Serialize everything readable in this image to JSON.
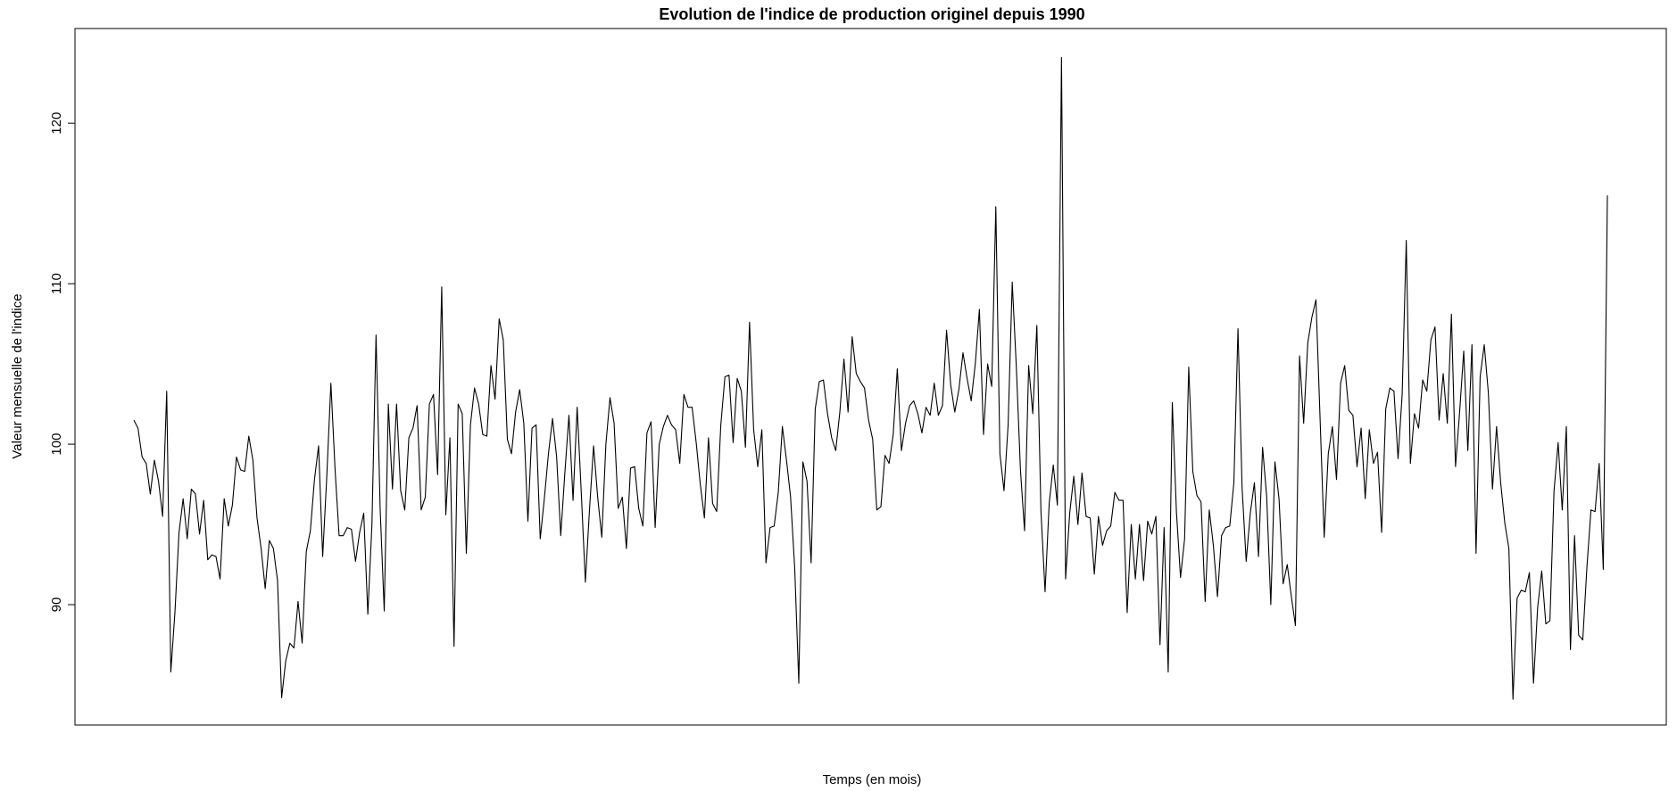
{
  "chart_data": {
    "type": "line",
    "title": "Evolution de l'indice de production originel depuis 1990",
    "xlabel": "Temps (en mois)",
    "ylabel": "Valeur mensuelle de l'indice",
    "x_ticks_shown": false,
    "ylim": [
      82.5,
      125.9
    ],
    "y_ticks": [
      90,
      100,
      110,
      120
    ],
    "grid": false,
    "legend": "none",
    "line_color": "#000000",
    "series": [
      {
        "values": [
          101.5,
          101.0,
          99.2,
          98.8,
          96.9,
          99.0,
          97.7,
          95.5,
          103.3,
          85.8,
          89.5,
          94.5,
          96.6,
          94.1,
          97.2,
          96.9,
          94.4,
          96.5,
          92.8,
          93.1,
          93.0,
          91.6,
          96.6,
          94.9,
          96.2,
          99.2,
          98.4,
          98.3,
          100.5,
          99.0,
          95.4,
          93.5,
          91.0,
          94.0,
          93.5,
          91.5,
          84.2,
          86.5,
          87.6,
          87.3,
          90.2,
          87.6,
          93.3,
          94.6,
          97.8,
          99.9,
          93.0,
          98.0,
          103.8,
          98.5,
          94.3,
          94.3,
          94.8,
          94.7,
          92.7,
          94.5,
          95.7,
          89.4,
          95.0,
          106.8,
          96.0,
          89.6,
          102.5,
          97.2,
          102.5,
          97.1,
          95.9,
          100.4,
          101.0,
          102.4,
          95.9,
          96.7,
          102.5,
          103.1,
          98.1,
          109.8,
          95.6,
          100.4,
          87.4,
          102.5,
          101.9,
          93.2,
          101.2,
          103.5,
          102.5,
          100.6,
          100.5,
          104.9,
          102.8,
          107.8,
          106.5,
          100.3,
          99.4,
          102.0,
          103.4,
          101.3,
          95.2,
          101.0,
          101.2,
          94.1,
          96.6,
          99.4,
          101.6,
          99.2,
          94.3,
          98.2,
          101.8,
          96.5,
          102.3,
          97.0,
          91.4,
          95.9,
          99.9,
          96.7,
          94.2,
          100.0,
          102.9,
          101.3,
          96.0,
          96.7,
          93.5,
          98.5,
          98.6,
          96.0,
          94.9,
          100.7,
          101.4,
          94.8,
          100.0,
          101.1,
          101.8,
          101.2,
          100.9,
          98.8,
          103.1,
          102.3,
          102.3,
          100.1,
          97.5,
          95.4,
          100.4,
          96.3,
          95.8,
          101.2,
          104.2,
          104.3,
          100.1,
          104.1,
          103.3,
          99.8,
          107.6,
          100.9,
          98.6,
          100.9,
          92.6,
          94.8,
          94.9,
          97.0,
          101.1,
          99.0,
          96.7,
          92.3,
          85.1,
          98.9,
          97.7,
          92.6,
          102.2,
          103.9,
          104.0,
          101.9,
          100.4,
          99.6,
          102.0,
          105.3,
          102.0,
          106.7,
          104.4,
          103.9,
          103.5,
          101.5,
          100.3,
          95.9,
          96.1,
          99.3,
          98.8,
          100.6,
          104.7,
          99.6,
          101.3,
          102.4,
          102.7,
          101.9,
          100.7,
          102.3,
          101.8,
          103.8,
          101.8,
          102.4,
          107.1,
          103.7,
          102.0,
          103.4,
          105.7,
          104.1,
          102.7,
          105.0,
          108.4,
          100.6,
          105.0,
          103.6,
          114.8,
          99.4,
          97.1,
          101.2,
          110.1,
          104.8,
          98.4,
          94.6,
          104.9,
          101.9,
          107.4,
          95.8,
          90.8,
          96.3,
          98.7,
          96.2,
          124.1,
          91.6,
          95.7,
          98.0,
          95.0,
          98.2,
          95.5,
          95.4,
          91.9,
          95.5,
          93.7,
          94.6,
          94.9,
          97.0,
          96.5,
          96.5,
          89.5,
          95.0,
          91.6,
          95.0,
          91.5,
          95.2,
          94.4,
          95.5,
          87.5,
          94.8,
          85.8,
          102.6,
          95.8,
          91.7,
          94.1,
          104.8,
          98.3,
          96.8,
          96.4,
          90.2,
          95.9,
          93.7,
          90.5,
          94.3,
          94.8,
          94.9,
          97.6,
          107.2,
          97.3,
          92.7,
          95.7,
          97.6,
          93.0,
          99.8,
          96.7,
          90.0,
          98.9,
          96.6,
          91.3,
          92.5,
          90.5,
          88.7,
          105.5,
          101.3,
          106.3,
          107.9,
          109.0,
          101.6,
          94.2,
          99.4,
          101.1,
          97.8,
          103.8,
          104.9,
          102.1,
          101.8,
          98.6,
          101.0,
          96.6,
          100.9,
          98.8,
          99.5,
          94.5,
          102.2,
          103.5,
          103.3,
          99.1,
          103.1,
          112.7,
          98.8,
          101.9,
          101.0,
          104.0,
          103.3,
          106.5,
          107.3,
          101.5,
          104.4,
          101.3,
          108.1,
          98.6,
          102.0,
          105.8,
          99.6,
          106.2,
          93.2,
          104.2,
          106.2,
          103.2,
          97.2,
          101.1,
          97.6,
          95.1,
          93.5,
          84.1,
          90.4,
          90.9,
          90.8,
          92.0,
          85.1,
          89.8,
          92.1,
          88.8,
          89.0,
          97.1,
          100.1,
          95.9,
          101.1,
          87.2,
          94.3,
          88.1,
          87.8,
          92.3,
          95.9,
          95.8,
          98.8,
          92.2,
          115.5
        ]
      }
    ]
  }
}
